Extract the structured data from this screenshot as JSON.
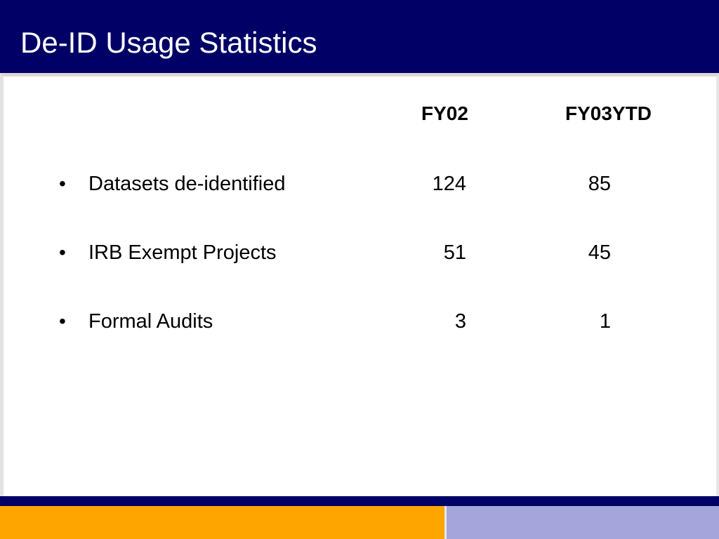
{
  "slide": {
    "title": "De-ID Usage Statistics",
    "columns": [
      "FY02",
      "FY03YTD"
    ],
    "rows": [
      {
        "bullet": "•",
        "label": "Datasets de-identified",
        "fy02": "124",
        "fy03ytd": "85"
      },
      {
        "bullet": "•",
        "label": "IRB Exempt Projects",
        "fy02": "51",
        "fy03ytd": "45"
      },
      {
        "bullet": "•",
        "label": "Formal Audits",
        "fy02": "3",
        "fy03ytd": "1"
      }
    ]
  },
  "colors": {
    "title_bar": "#000066",
    "footer_navy": "#000066",
    "footer_orange": "#ffa500",
    "footer_lavender": "#a5a5dc"
  }
}
